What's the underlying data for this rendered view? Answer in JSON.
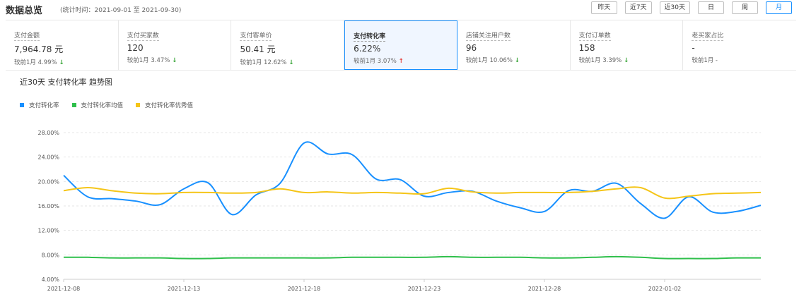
{
  "header": {
    "title": "数据总览",
    "period": "(统计时间：2021-09-01 至 2021-09-30)",
    "buttons": [
      {
        "label": "昨天",
        "active": false
      },
      {
        "label": "近7天",
        "active": false
      },
      {
        "label": "近30天",
        "active": false
      },
      {
        "label": "日",
        "active": false
      },
      {
        "label": "周",
        "active": false
      },
      {
        "label": "月",
        "active": true
      }
    ]
  },
  "metrics": [
    {
      "label": "支付金额",
      "value": "7,964.78 元",
      "compare": "较前1月  4.99%",
      "trend": "down",
      "active": false
    },
    {
      "label": "支付买家数",
      "value": "120",
      "compare": "较前1月  3.47%",
      "trend": "down",
      "active": false
    },
    {
      "label": "支付客单价",
      "value": "50.41 元",
      "compare": "较前1月  12.62%",
      "trend": "down",
      "active": false
    },
    {
      "label": "支付转化率",
      "value": "6.22%",
      "compare": "较前1月  3.07%",
      "trend": "up",
      "active": true
    },
    {
      "label": "店铺关注用户数",
      "value": "96",
      "compare": "较前1月  10.06%",
      "trend": "down",
      "active": false
    },
    {
      "label": "支付订单数",
      "value": "158",
      "compare": "较前1月  3.39%",
      "trend": "down",
      "active": false
    },
    {
      "label": "老买家占比",
      "value": "-",
      "compare": "较前1月  -",
      "trend": "none",
      "active": false
    }
  ],
  "chart_panel": {
    "title": "近30天 支付转化率 趋势图"
  },
  "chart_data": {
    "type": "line",
    "title": "近30天 支付转化率 趋势图",
    "x": [
      "2021-12-08",
      "2021-12-09",
      "2021-12-10",
      "2021-12-11",
      "2021-12-12",
      "2021-12-13",
      "2021-12-14",
      "2021-12-15",
      "2021-12-16",
      "2021-12-17",
      "2021-12-18",
      "2021-12-19",
      "2021-12-20",
      "2021-12-21",
      "2021-12-22",
      "2021-12-23",
      "2021-12-24",
      "2021-12-25",
      "2021-12-26",
      "2021-12-27",
      "2021-12-28",
      "2021-12-29",
      "2021-12-30",
      "2021-12-31",
      "2022-01-01",
      "2022-01-02",
      "2022-01-03",
      "2022-01-04",
      "2022-01-05",
      "2022-01-06"
    ],
    "x_ticks": [
      "2021-12-08",
      "2021-12-13",
      "2021-12-18",
      "2021-12-23",
      "2021-12-28",
      "2022-01-02"
    ],
    "y_ticks": [
      "4.00%",
      "8.00%",
      "12.00%",
      "16.00%",
      "20.00%",
      "24.00%",
      "28.00%"
    ],
    "ylim": [
      4,
      28
    ],
    "grid": true,
    "legend_position": "top-left",
    "series": [
      {
        "name": "支付转化率",
        "color": "#1890ff",
        "values": [
          21.0,
          17.5,
          17.2,
          16.8,
          16.2,
          18.8,
          19.8,
          14.6,
          17.8,
          19.7,
          26.3,
          24.5,
          24.4,
          20.4,
          20.3,
          17.6,
          18.2,
          18.4,
          16.8,
          15.7,
          15.1,
          18.5,
          18.4,
          19.7,
          16.4,
          14.0,
          17.5,
          15.0,
          15.1,
          16.1
        ]
      },
      {
        "name": "支付转化率均值",
        "color": "#2fbf4b",
        "values": [
          7.6,
          7.6,
          7.5,
          7.5,
          7.5,
          7.4,
          7.4,
          7.5,
          7.5,
          7.5,
          7.5,
          7.5,
          7.6,
          7.6,
          7.6,
          7.6,
          7.7,
          7.6,
          7.6,
          7.6,
          7.5,
          7.5,
          7.6,
          7.7,
          7.6,
          7.4,
          7.4,
          7.4,
          7.5,
          7.5
        ]
      },
      {
        "name": "支付转化率优秀值",
        "color": "#f5c518",
        "values": [
          18.5,
          19.0,
          18.5,
          18.1,
          18.0,
          18.2,
          18.2,
          18.1,
          18.2,
          18.8,
          18.2,
          18.3,
          18.1,
          18.2,
          18.1,
          18.0,
          18.9,
          18.3,
          18.1,
          18.2,
          18.2,
          18.2,
          18.4,
          18.8,
          19.0,
          17.3,
          17.6,
          18.0,
          18.1,
          18.2
        ]
      }
    ]
  }
}
